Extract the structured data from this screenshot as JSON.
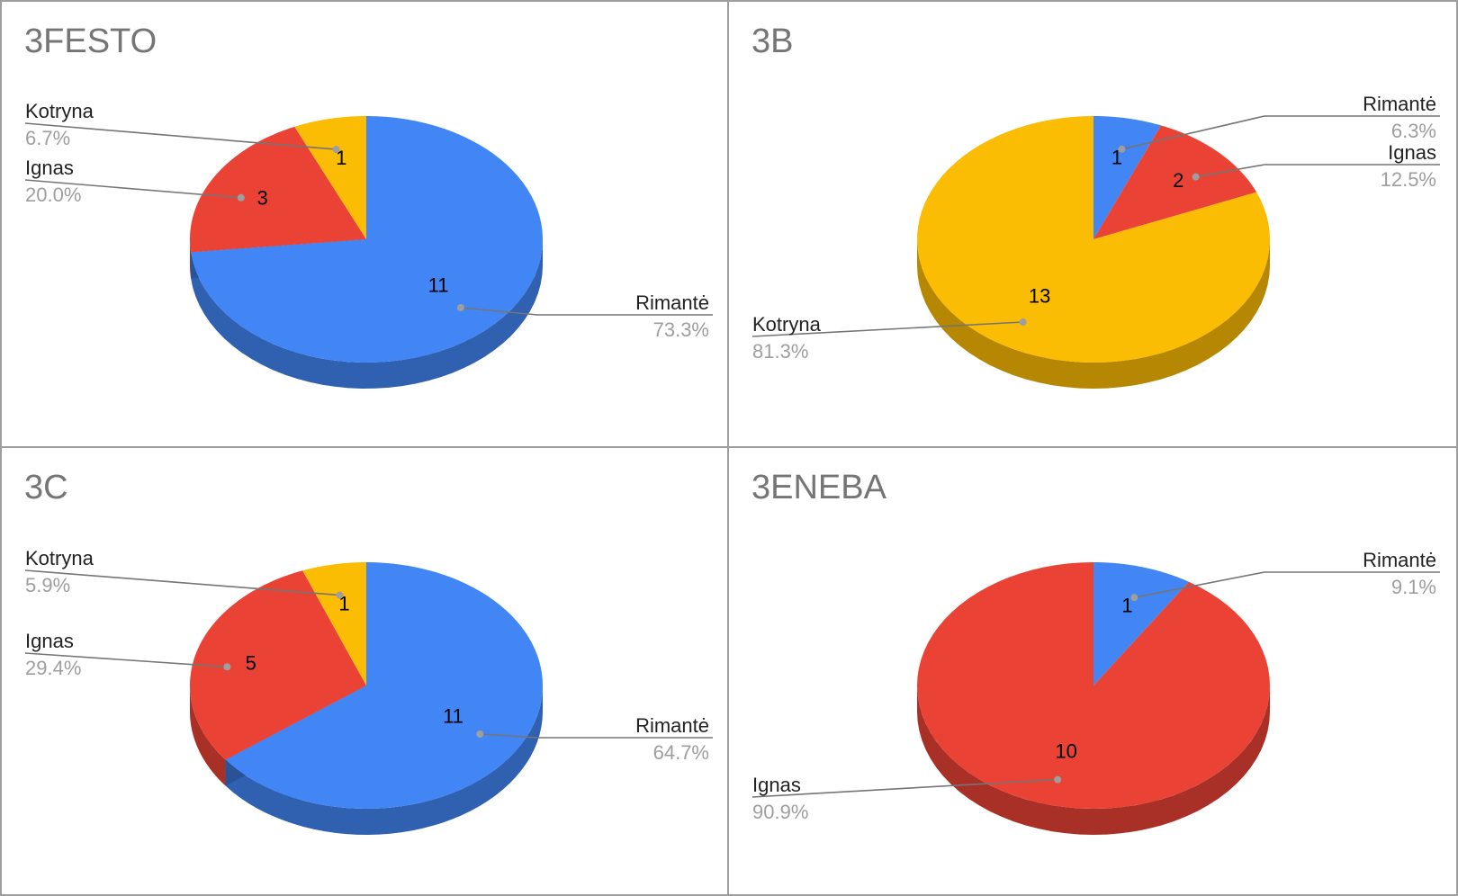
{
  "colors": {
    "Rimantė": "#4285F4",
    "Ignas": "#EA4335",
    "Kotryna": "#FBBC04",
    "title": "#757575",
    "label": "#222222",
    "percent": "#9E9E9E",
    "leader": "#757575",
    "border": "#9E9E9E"
  },
  "chart_data": [
    {
      "type": "pie",
      "style": "3d",
      "title": "3FESTO",
      "slices": [
        {
          "label": "Rimantė",
          "value": 11,
          "percent": "73.3%"
        },
        {
          "label": "Ignas",
          "value": 3,
          "percent": "20.0%"
        },
        {
          "label": "Kotryna",
          "value": 1,
          "percent": "6.7%"
        }
      ]
    },
    {
      "type": "pie",
      "style": "3d",
      "title": "3B",
      "slices": [
        {
          "label": "Rimantė",
          "value": 1,
          "percent": "6.3%"
        },
        {
          "label": "Ignas",
          "value": 2,
          "percent": "12.5%"
        },
        {
          "label": "Kotryna",
          "value": 13,
          "percent": "81.3%"
        }
      ]
    },
    {
      "type": "pie",
      "style": "3d",
      "title": "3C",
      "slices": [
        {
          "label": "Rimantė",
          "value": 11,
          "percent": "64.7%"
        },
        {
          "label": "Ignas",
          "value": 5,
          "percent": "29.4%"
        },
        {
          "label": "Kotryna",
          "value": 1,
          "percent": "5.9%"
        }
      ]
    },
    {
      "type": "pie",
      "style": "3d",
      "title": "3ENEBA",
      "slices": [
        {
          "label": "Rimantė",
          "value": 1,
          "percent": "9.1%"
        },
        {
          "label": "Ignas",
          "value": 10,
          "percent": "90.9%"
        }
      ]
    }
  ]
}
